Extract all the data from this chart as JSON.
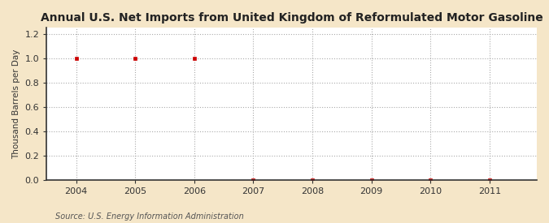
{
  "title": "Annual U.S. Net Imports from United Kingdom of Reformulated Motor Gasoline",
  "ylabel": "Thousand Barrels per Day",
  "source": "Source: U.S. Energy Information Administration",
  "fig_facecolor": "#f5e6c8",
  "plot_facecolor": "#ffffff",
  "years": [
    2004,
    2005,
    2006,
    2007,
    2008,
    2009,
    2010,
    2011
  ],
  "values": [
    1.0,
    1.0,
    1.0,
    0.0,
    0.0,
    0.0,
    0.0,
    0.0
  ],
  "xlim": [
    2003.5,
    2011.8
  ],
  "ylim": [
    0.0,
    1.25
  ],
  "yticks": [
    0.0,
    0.2,
    0.4,
    0.6,
    0.8,
    1.0,
    1.2
  ],
  "xticks": [
    2004,
    2005,
    2006,
    2007,
    2008,
    2009,
    2010,
    2011
  ],
  "marker_color": "#cc0000",
  "marker_size": 3,
  "grid_color": "#aaaaaa",
  "title_fontsize": 10,
  "label_fontsize": 7.5,
  "tick_fontsize": 8,
  "source_fontsize": 7
}
